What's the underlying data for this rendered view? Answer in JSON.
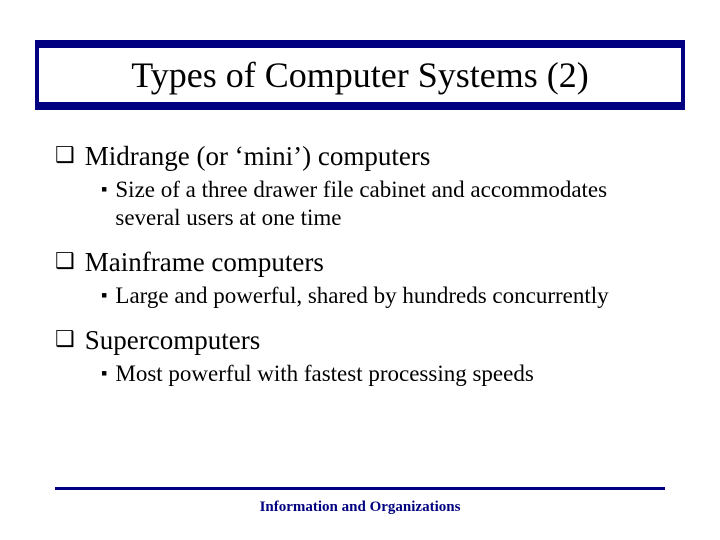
{
  "slide": {
    "title": "Types of Computer Systems (2)",
    "items": [
      {
        "heading": "Midrange (or ‘mini’) computers",
        "sub": "Size of a three drawer file cabinet and accommodates several users at one time"
      },
      {
        "heading": "Mainframe computers",
        "sub": "Large and powerful, shared by hundreds concurrently"
      },
      {
        "heading": "Supercomputers",
        "sub": "Most powerful with fastest processing speeds"
      }
    ],
    "footer": "Information and Organizations"
  },
  "style": {
    "title_band_color": "#000080",
    "title_fontsize": 36,
    "level1_fontsize": 27,
    "level2_fontsize": 23,
    "footer_color": "#000080",
    "footer_fontsize": 15,
    "background_color": "#ffffff",
    "bullet_level1": "❑",
    "bullet_level2": "▪"
  }
}
